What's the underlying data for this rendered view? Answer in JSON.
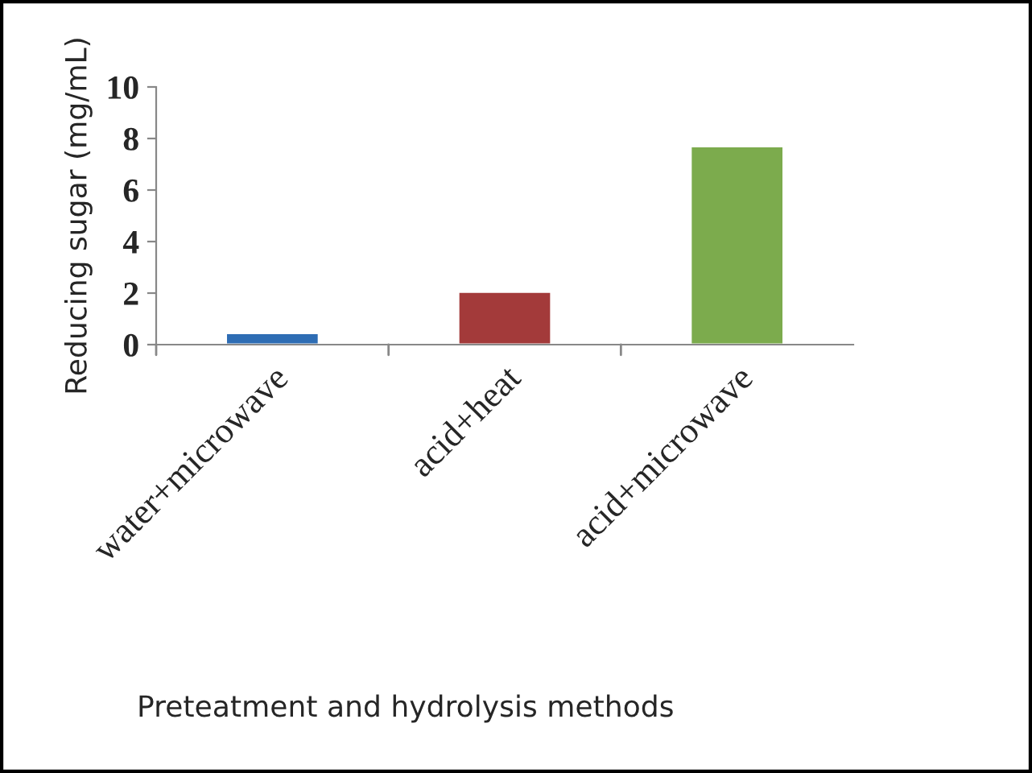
{
  "chart_data": {
    "type": "bar",
    "categories": [
      "water+microwave",
      "acid+heat",
      "acid+microwave"
    ],
    "values": [
      0.45,
      2.05,
      7.7
    ],
    "colors": [
      "#2e6db4",
      "#a33a3a",
      "#7cab4d"
    ],
    "ylim": [
      0,
      10
    ],
    "yticks": [
      0,
      2,
      4,
      6,
      8,
      10
    ],
    "xlabel": "Preteatment and hydrolysis methods",
    "ylabel": "Reducing sugar (mg/mL)",
    "grid": false,
    "legend": false
  }
}
